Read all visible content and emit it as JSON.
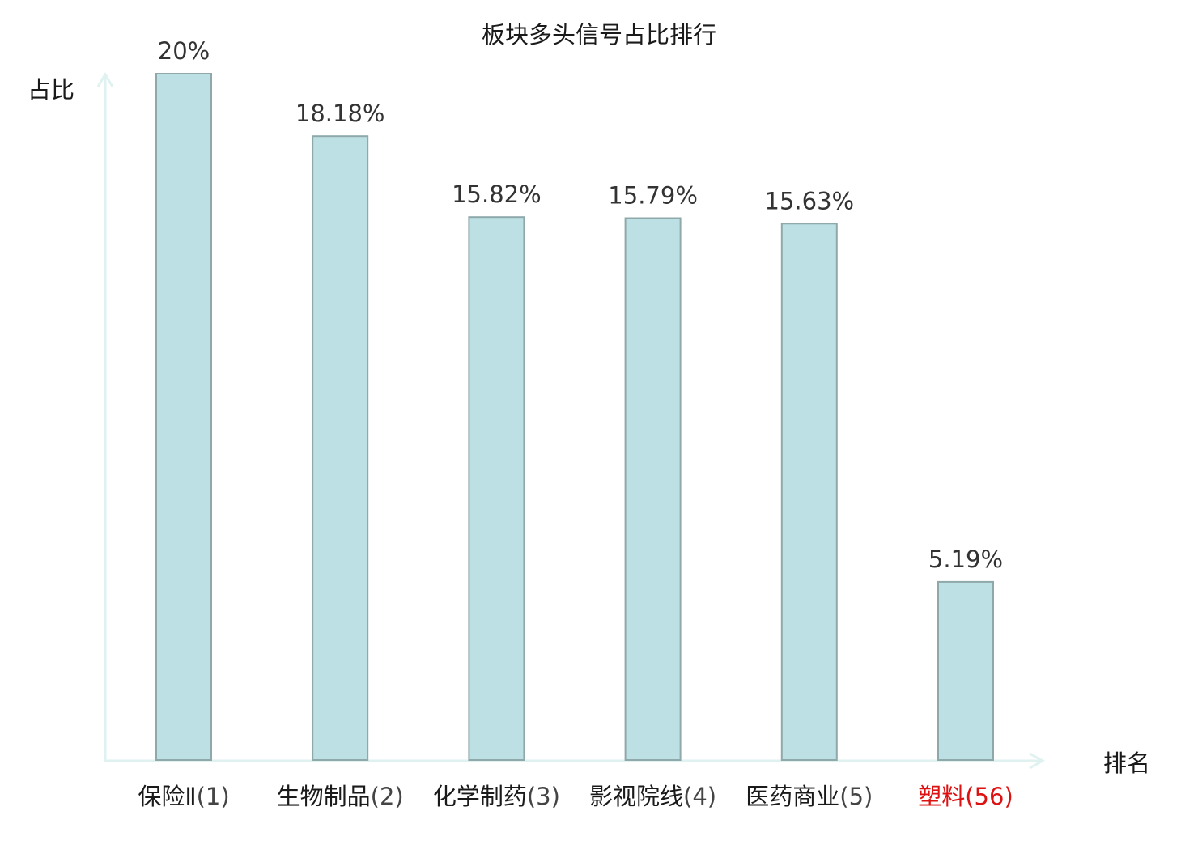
{
  "chart_data": {
    "type": "bar",
    "title": "板块多头信号占比排行",
    "ylabel": "占比",
    "xlabel": "排名",
    "categories": [
      {
        "name": "保险Ⅱ",
        "rank": "(1)",
        "highlight": false
      },
      {
        "name": "生物制品",
        "rank": "(2)",
        "highlight": false
      },
      {
        "name": "化学制药",
        "rank": "(3)",
        "highlight": false
      },
      {
        "name": "影视院线",
        "rank": "(4)",
        "highlight": false
      },
      {
        "name": "医药商业",
        "rank": "(5)",
        "highlight": false
      },
      {
        "name": "塑料",
        "rank": "(56)",
        "highlight": true
      }
    ],
    "values": [
      20,
      18.18,
      15.82,
      15.79,
      15.63,
      5.19
    ],
    "value_labels": [
      "20%",
      "18.18%",
      "15.82%",
      "15.79%",
      "15.63%",
      "5.19%"
    ],
    "ylim": [
      0,
      20
    ],
    "grid": false,
    "legend": "none",
    "colors": {
      "bar_fill": "#bce0e3",
      "bar_stroke": "#8fa9ab",
      "axis": "#dff2f0",
      "text": "#333333",
      "label_text": "#1a1a1a",
      "highlight": "#dd1111"
    }
  }
}
